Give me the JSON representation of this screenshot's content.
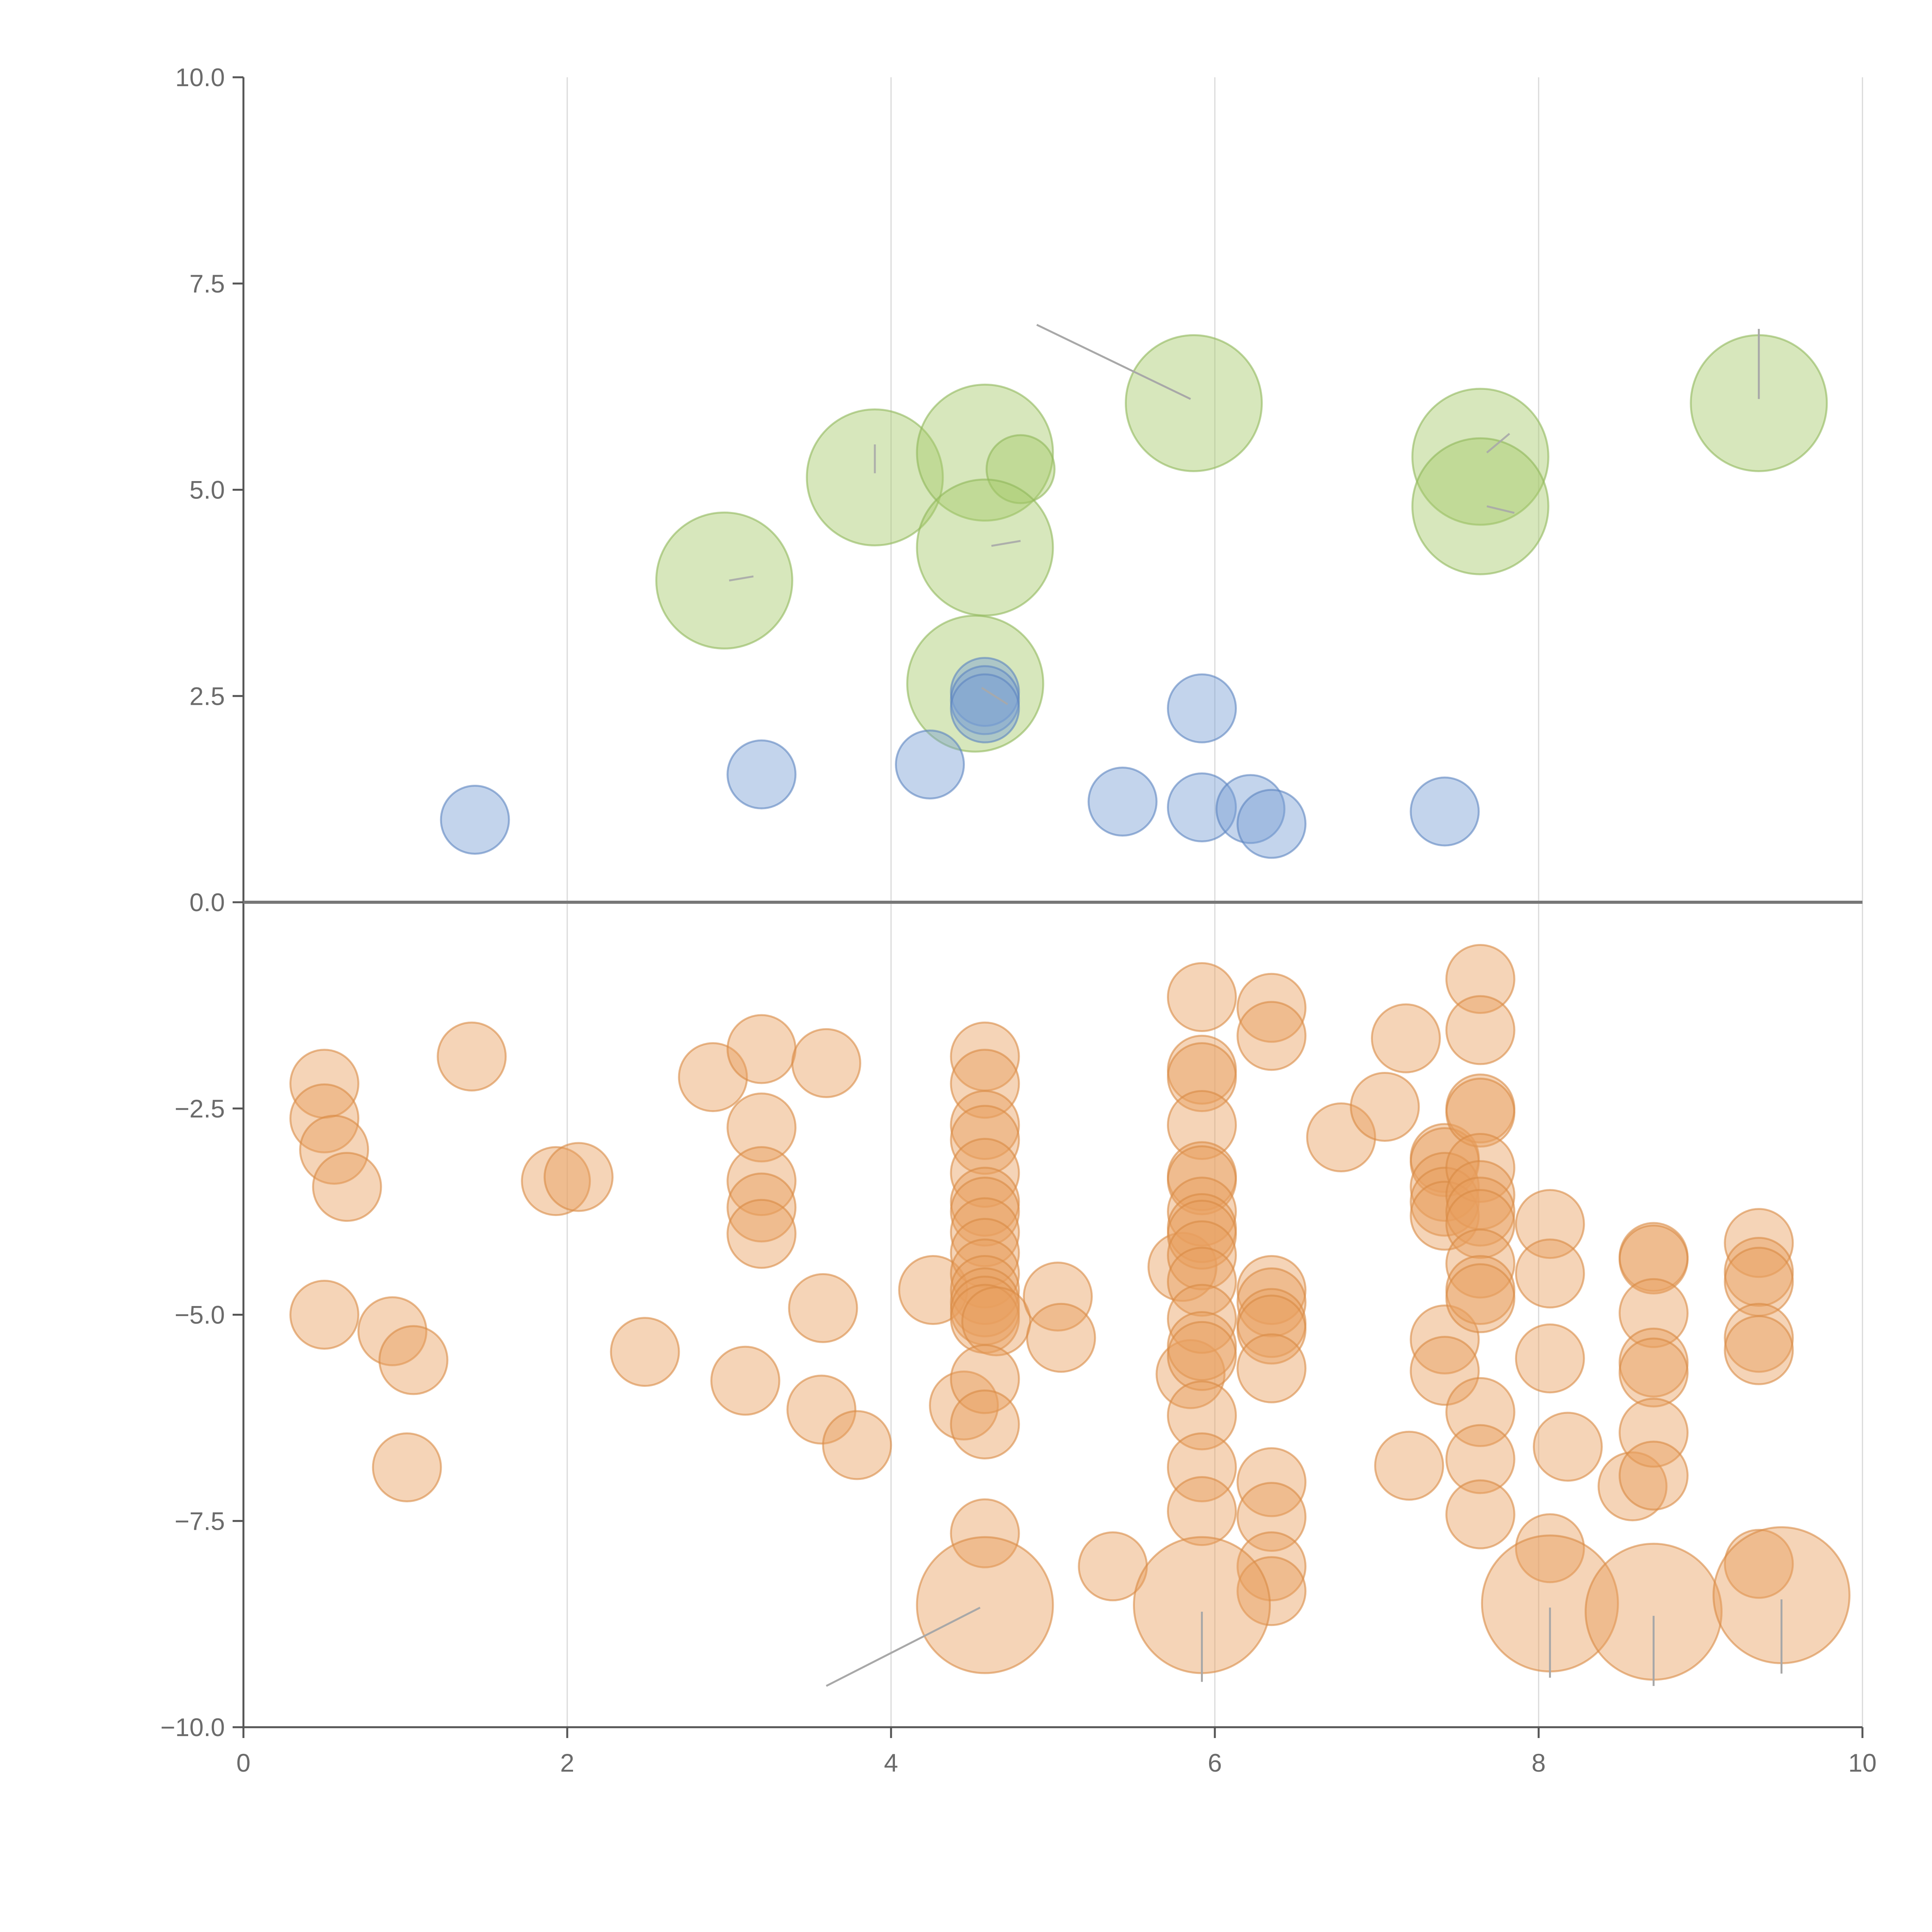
{
  "chart_data": {
    "type": "scatter",
    "title": "",
    "xlabel": "",
    "ylabel": "",
    "xlim": [
      0,
      10
    ],
    "ylim": [
      -10,
      10
    ],
    "x_ticks": [
      0,
      2,
      4,
      6,
      8,
      10
    ],
    "x_tick_labels": [
      "0",
      "2",
      "4",
      "6",
      "8",
      "10"
    ],
    "y_ticks": [
      10,
      7.5,
      5,
      2.5,
      0,
      -2.5,
      -5,
      -7.5,
      -10
    ],
    "y_tick_labels": [
      "10.0",
      "7.5",
      "5.0",
      "2.5",
      "0.0",
      "−2.5",
      "−5.0",
      "−7.5",
      "−10.0"
    ],
    "grid": "vertical",
    "zero_line": 0,
    "colors": {
      "green_fill": "#a6c96a",
      "green_stroke": "#8fb85a",
      "blue_fill": "#7aa0d4",
      "blue_stroke": "#5b84bf",
      "orange_fill": "#e8a060",
      "orange_stroke": "#d98a45"
    },
    "series": [
      {
        "name": "green",
        "color": "green",
        "opacity": 0.45,
        "points": [
          {
            "x": 2.97,
            "y": 3.9,
            "r": 2.2
          },
          {
            "x": 3.9,
            "y": 5.15,
            "r": 2.2
          },
          {
            "x": 4.58,
            "y": 5.45,
            "r": 2.2
          },
          {
            "x": 4.8,
            "y": 5.25,
            "r": 1.1
          },
          {
            "x": 4.58,
            "y": 4.3,
            "r": 2.2
          },
          {
            "x": 4.52,
            "y": 2.65,
            "r": 2.2
          },
          {
            "x": 5.87,
            "y": 6.05,
            "r": 2.2
          },
          {
            "x": 7.64,
            "y": 5.4,
            "r": 2.2
          },
          {
            "x": 7.64,
            "y": 4.8,
            "r": 2.2
          },
          {
            "x": 9.36,
            "y": 6.05,
            "r": 2.2
          }
        ]
      },
      {
        "name": "blue",
        "color": "blue",
        "opacity": 0.45,
        "points": [
          {
            "x": 1.43,
            "y": 1.0,
            "r": 1.1
          },
          {
            "x": 3.2,
            "y": 1.55,
            "r": 1.1
          },
          {
            "x": 4.24,
            "y": 1.67,
            "r": 1.1
          },
          {
            "x": 4.58,
            "y": 2.55,
            "r": 1.1
          },
          {
            "x": 4.58,
            "y": 2.45,
            "r": 1.1
          },
          {
            "x": 4.58,
            "y": 2.35,
            "r": 1.1
          },
          {
            "x": 5.43,
            "y": 1.22,
            "r": 1.1
          },
          {
            "x": 5.92,
            "y": 2.35,
            "r": 1.1
          },
          {
            "x": 5.92,
            "y": 1.15,
            "r": 1.1
          },
          {
            "x": 6.22,
            "y": 1.13,
            "r": 1.1
          },
          {
            "x": 6.35,
            "y": 0.95,
            "r": 1.1
          },
          {
            "x": 7.42,
            "y": 1.1,
            "r": 1.1
          }
        ]
      },
      {
        "name": "orange",
        "color": "orange",
        "opacity": 0.45,
        "points": [
          {
            "x": 0.5,
            "y": -2.2,
            "r": 1.1
          },
          {
            "x": 0.5,
            "y": -2.62,
            "r": 1.1
          },
          {
            "x": 0.56,
            "y": -3.0,
            "r": 1.1
          },
          {
            "x": 0.64,
            "y": -3.45,
            "r": 1.1
          },
          {
            "x": 0.5,
            "y": -5.0,
            "r": 1.1
          },
          {
            "x": 0.92,
            "y": -5.2,
            "r": 1.1
          },
          {
            "x": 1.05,
            "y": -5.55,
            "r": 1.1
          },
          {
            "x": 1.01,
            "y": -6.85,
            "r": 1.1
          },
          {
            "x": 1.41,
            "y": -1.87,
            "r": 1.1
          },
          {
            "x": 1.93,
            "y": -3.38,
            "r": 1.1
          },
          {
            "x": 2.07,
            "y": -3.33,
            "r": 1.1
          },
          {
            "x": 2.48,
            "y": -5.45,
            "r": 1.1
          },
          {
            "x": 2.9,
            "y": -2.12,
            "r": 1.1
          },
          {
            "x": 3.1,
            "y": -5.8,
            "r": 1.1
          },
          {
            "x": 3.2,
            "y": -1.78,
            "r": 1.1
          },
          {
            "x": 3.2,
            "y": -2.73,
            "r": 1.1
          },
          {
            "x": 3.2,
            "y": -3.38,
            "r": 1.1
          },
          {
            "x": 3.2,
            "y": -3.7,
            "r": 1.1
          },
          {
            "x": 3.2,
            "y": -4.02,
            "r": 1.1
          },
          {
            "x": 3.6,
            "y": -1.95,
            "r": 1.1
          },
          {
            "x": 3.58,
            "y": -4.92,
            "r": 1.1
          },
          {
            "x": 3.57,
            "y": -6.15,
            "r": 1.1
          },
          {
            "x": 3.79,
            "y": -6.58,
            "r": 1.1
          },
          {
            "x": 4.26,
            "y": -4.7,
            "r": 1.1
          },
          {
            "x": 4.45,
            "y": -6.1,
            "r": 1.1
          },
          {
            "x": 4.58,
            "y": -1.87,
            "r": 1.1
          },
          {
            "x": 4.58,
            "y": -2.2,
            "r": 1.1
          },
          {
            "x": 4.58,
            "y": -2.7,
            "r": 1.1
          },
          {
            "x": 4.58,
            "y": -2.88,
            "r": 1.1
          },
          {
            "x": 4.58,
            "y": -3.28,
            "r": 1.1
          },
          {
            "x": 4.58,
            "y": -3.63,
            "r": 1.1
          },
          {
            "x": 4.58,
            "y": -3.75,
            "r": 1.1
          },
          {
            "x": 4.58,
            "y": -4.0,
            "r": 1.1
          },
          {
            "x": 4.58,
            "y": -4.25,
            "r": 1.1
          },
          {
            "x": 4.58,
            "y": -4.5,
            "r": 1.1
          },
          {
            "x": 4.58,
            "y": -4.7,
            "r": 1.1
          },
          {
            "x": 4.58,
            "y": -4.85,
            "r": 1.1
          },
          {
            "x": 4.58,
            "y": -4.95,
            "r": 1.1
          },
          {
            "x": 4.58,
            "y": -5.05,
            "r": 1.1
          },
          {
            "x": 4.65,
            "y": -5.08,
            "r": 1.1
          },
          {
            "x": 4.58,
            "y": -5.78,
            "r": 1.1
          },
          {
            "x": 4.58,
            "y": -6.33,
            "r": 1.1
          },
          {
            "x": 4.58,
            "y": -7.65,
            "r": 1.1
          },
          {
            "x": 5.03,
            "y": -4.78,
            "r": 1.1
          },
          {
            "x": 5.05,
            "y": -5.28,
            "r": 1.1
          },
          {
            "x": 5.37,
            "y": -8.05,
            "r": 1.1
          },
          {
            "x": 5.8,
            "y": -4.42,
            "r": 1.1
          },
          {
            "x": 5.85,
            "y": -5.72,
            "r": 1.1
          },
          {
            "x": 5.92,
            "y": -1.15,
            "r": 1.1
          },
          {
            "x": 5.92,
            "y": -2.03,
            "r": 1.1
          },
          {
            "x": 5.92,
            "y": -2.12,
            "r": 1.1
          },
          {
            "x": 5.92,
            "y": -2.7,
            "r": 1.1
          },
          {
            "x": 5.92,
            "y": -3.32,
            "r": 1.1
          },
          {
            "x": 5.92,
            "y": -3.37,
            "r": 1.1
          },
          {
            "x": 5.92,
            "y": -3.75,
            "r": 1.1
          },
          {
            "x": 5.92,
            "y": -3.95,
            "r": 1.1
          },
          {
            "x": 5.92,
            "y": -4.03,
            "r": 1.1
          },
          {
            "x": 5.92,
            "y": -4.28,
            "r": 1.1
          },
          {
            "x": 5.92,
            "y": -4.6,
            "r": 1.1
          },
          {
            "x": 5.92,
            "y": -5.05,
            "r": 1.1
          },
          {
            "x": 5.92,
            "y": -5.38,
            "r": 1.1
          },
          {
            "x": 5.92,
            "y": -5.5,
            "r": 1.1
          },
          {
            "x": 5.92,
            "y": -6.22,
            "r": 1.1
          },
          {
            "x": 5.92,
            "y": -6.85,
            "r": 1.1
          },
          {
            "x": 5.92,
            "y": -7.38,
            "r": 1.1
          },
          {
            "x": 6.35,
            "y": -1.28,
            "r": 1.1
          },
          {
            "x": 6.35,
            "y": -1.62,
            "r": 1.1
          },
          {
            "x": 6.35,
            "y": -4.7,
            "r": 1.1
          },
          {
            "x": 6.35,
            "y": -4.85,
            "r": 1.1
          },
          {
            "x": 6.35,
            "y": -5.1,
            "r": 1.1
          },
          {
            "x": 6.35,
            "y": -5.18,
            "r": 1.1
          },
          {
            "x": 6.35,
            "y": -5.65,
            "r": 1.1
          },
          {
            "x": 6.35,
            "y": -7.03,
            "r": 1.1
          },
          {
            "x": 6.35,
            "y": -7.45,
            "r": 1.1
          },
          {
            "x": 6.35,
            "y": -8.05,
            "r": 1.1
          },
          {
            "x": 6.35,
            "y": -8.35,
            "r": 1.1
          },
          {
            "x": 6.78,
            "y": -2.85,
            "r": 1.1
          },
          {
            "x": 7.05,
            "y": -2.48,
            "r": 1.1
          },
          {
            "x": 7.18,
            "y": -1.65,
            "r": 1.1
          },
          {
            "x": 7.2,
            "y": -6.83,
            "r": 1.1
          },
          {
            "x": 7.42,
            "y": -3.1,
            "r": 1.1
          },
          {
            "x": 7.42,
            "y": -3.15,
            "r": 1.1
          },
          {
            "x": 7.42,
            "y": -3.45,
            "r": 1.1
          },
          {
            "x": 7.42,
            "y": -3.63,
            "r": 1.1
          },
          {
            "x": 7.42,
            "y": -3.8,
            "r": 1.1
          },
          {
            "x": 7.42,
            "y": -5.3,
            "r": 1.1
          },
          {
            "x": 7.42,
            "y": -5.68,
            "r": 1.1
          },
          {
            "x": 7.64,
            "y": -0.93,
            "r": 1.1
          },
          {
            "x": 7.64,
            "y": -1.55,
            "r": 1.1
          },
          {
            "x": 7.64,
            "y": -2.5,
            "r": 1.1
          },
          {
            "x": 7.64,
            "y": -2.55,
            "r": 1.1
          },
          {
            "x": 7.64,
            "y": -3.22,
            "r": 1.1
          },
          {
            "x": 7.64,
            "y": -3.55,
            "r": 1.1
          },
          {
            "x": 7.64,
            "y": -3.75,
            "r": 1.1
          },
          {
            "x": 7.64,
            "y": -3.9,
            "r": 1.1
          },
          {
            "x": 7.64,
            "y": -4.38,
            "r": 1.1
          },
          {
            "x": 7.64,
            "y": -4.7,
            "r": 1.1
          },
          {
            "x": 7.64,
            "y": -4.8,
            "r": 1.1
          },
          {
            "x": 7.64,
            "y": -6.18,
            "r": 1.1
          },
          {
            "x": 7.64,
            "y": -6.75,
            "r": 1.1
          },
          {
            "x": 7.64,
            "y": -7.42,
            "r": 1.1
          },
          {
            "x": 8.07,
            "y": -3.9,
            "r": 1.1
          },
          {
            "x": 8.07,
            "y": -4.5,
            "r": 1.1
          },
          {
            "x": 8.07,
            "y": -5.53,
            "r": 1.1
          },
          {
            "x": 8.07,
            "y": -7.83,
            "r": 1.1
          },
          {
            "x": 8.18,
            "y": -6.6,
            "r": 1.1
          },
          {
            "x": 8.58,
            "y": -7.08,
            "r": 1.1
          },
          {
            "x": 8.71,
            "y": -4.3,
            "r": 1.1
          },
          {
            "x": 8.71,
            "y": -4.33,
            "r": 1.1
          },
          {
            "x": 8.71,
            "y": -4.98,
            "r": 1.1
          },
          {
            "x": 8.71,
            "y": -5.58,
            "r": 1.1
          },
          {
            "x": 8.71,
            "y": -5.7,
            "r": 1.1
          },
          {
            "x": 8.71,
            "y": -6.43,
            "r": 1.1
          },
          {
            "x": 8.71,
            "y": -6.95,
            "r": 1.1
          },
          {
            "x": 9.36,
            "y": -4.13,
            "r": 1.1
          },
          {
            "x": 9.36,
            "y": -4.48,
            "r": 1.1
          },
          {
            "x": 9.36,
            "y": -4.6,
            "r": 1.1
          },
          {
            "x": 9.36,
            "y": -5.28,
            "r": 1.1
          },
          {
            "x": 9.36,
            "y": -5.43,
            "r": 1.1
          },
          {
            "x": 9.36,
            "y": -8.02,
            "r": 1.1
          },
          {
            "x": 4.58,
            "y": -8.52,
            "r": 2.2
          },
          {
            "x": 5.92,
            "y": -8.52,
            "r": 2.2
          },
          {
            "x": 8.07,
            "y": -8.5,
            "r": 2.2
          },
          {
            "x": 8.71,
            "y": -8.6,
            "r": 2.2
          },
          {
            "x": 9.5,
            "y": -8.4,
            "r": 2.2
          }
        ]
      }
    ],
    "leader_lines": [
      {
        "x1": 4.9,
        "y1": 7.0,
        "x2": 5.85,
        "y2": 6.1,
        "color": "gray"
      },
      {
        "x1": 9.36,
        "y1": 6.95,
        "x2": 9.36,
        "y2": 6.1,
        "color": "gray"
      },
      {
        "x1": 3.6,
        "y1": -9.5,
        "x2": 4.55,
        "y2": -8.55,
        "color": "gray"
      },
      {
        "x1": 5.92,
        "y1": -9.45,
        "x2": 5.92,
        "y2": -8.6,
        "color": "gray"
      },
      {
        "x1": 8.07,
        "y1": -9.4,
        "x2": 8.07,
        "y2": -8.55,
        "color": "gray"
      },
      {
        "x1": 8.71,
        "y1": -9.5,
        "x2": 8.71,
        "y2": -8.65,
        "color": "gray"
      },
      {
        "x1": 9.5,
        "y1": -9.35,
        "x2": 9.5,
        "y2": -8.45,
        "color": "gray"
      },
      {
        "x1": 3.0,
        "y1": 3.9,
        "x2": 3.15,
        "y2": 3.95,
        "color": "white"
      },
      {
        "x1": 3.9,
        "y1": 5.2,
        "x2": 3.9,
        "y2": 5.55,
        "color": "white"
      },
      {
        "x1": 4.62,
        "y1": 4.32,
        "x2": 4.8,
        "y2": 4.38,
        "color": "white"
      },
      {
        "x1": 4.56,
        "y1": 2.6,
        "x2": 4.72,
        "y2": 2.4,
        "color": "white"
      },
      {
        "x1": 7.68,
        "y1": 5.45,
        "x2": 7.82,
        "y2": 5.68,
        "color": "white"
      },
      {
        "x1": 7.68,
        "y1": 4.8,
        "x2": 7.85,
        "y2": 4.72,
        "color": "white"
      }
    ]
  }
}
